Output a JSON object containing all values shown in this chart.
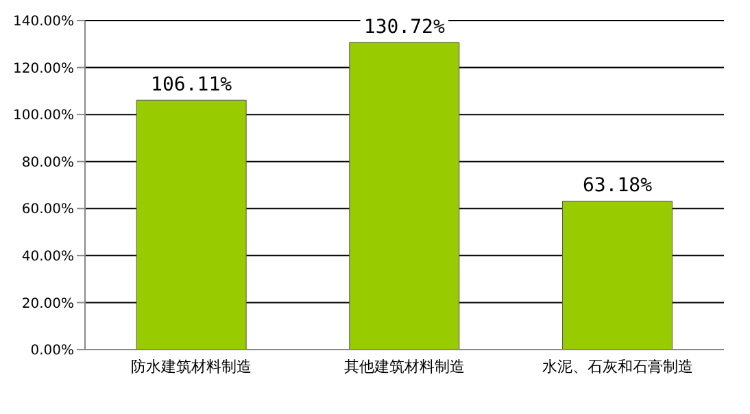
{
  "chart_data": {
    "type": "bar",
    "categories": [
      "防水建筑材料制造",
      "其他建筑材料制造",
      "水泥、石灰和石膏制造"
    ],
    "series": [
      {
        "color": "#99cc00",
        "values": [
          106.11,
          130.72,
          63.18
        ],
        "value_labels": [
          "106.11%",
          "130.72%",
          "63.18%"
        ]
      }
    ],
    "ylim": [
      0,
      140
    ],
    "yticks": [
      {
        "value": 0,
        "label": "0.00%"
      },
      {
        "value": 20,
        "label": "20.00%"
      },
      {
        "value": 40,
        "label": "40.00%"
      },
      {
        "value": 60,
        "label": "60.00%"
      },
      {
        "value": 80,
        "label": "80.00%"
      },
      {
        "value": 100,
        "label": "100.00%"
      },
      {
        "value": 120,
        "label": "120.00%"
      },
      {
        "value": 140,
        "label": "140.00%"
      }
    ],
    "grid": "y",
    "legend": false
  }
}
